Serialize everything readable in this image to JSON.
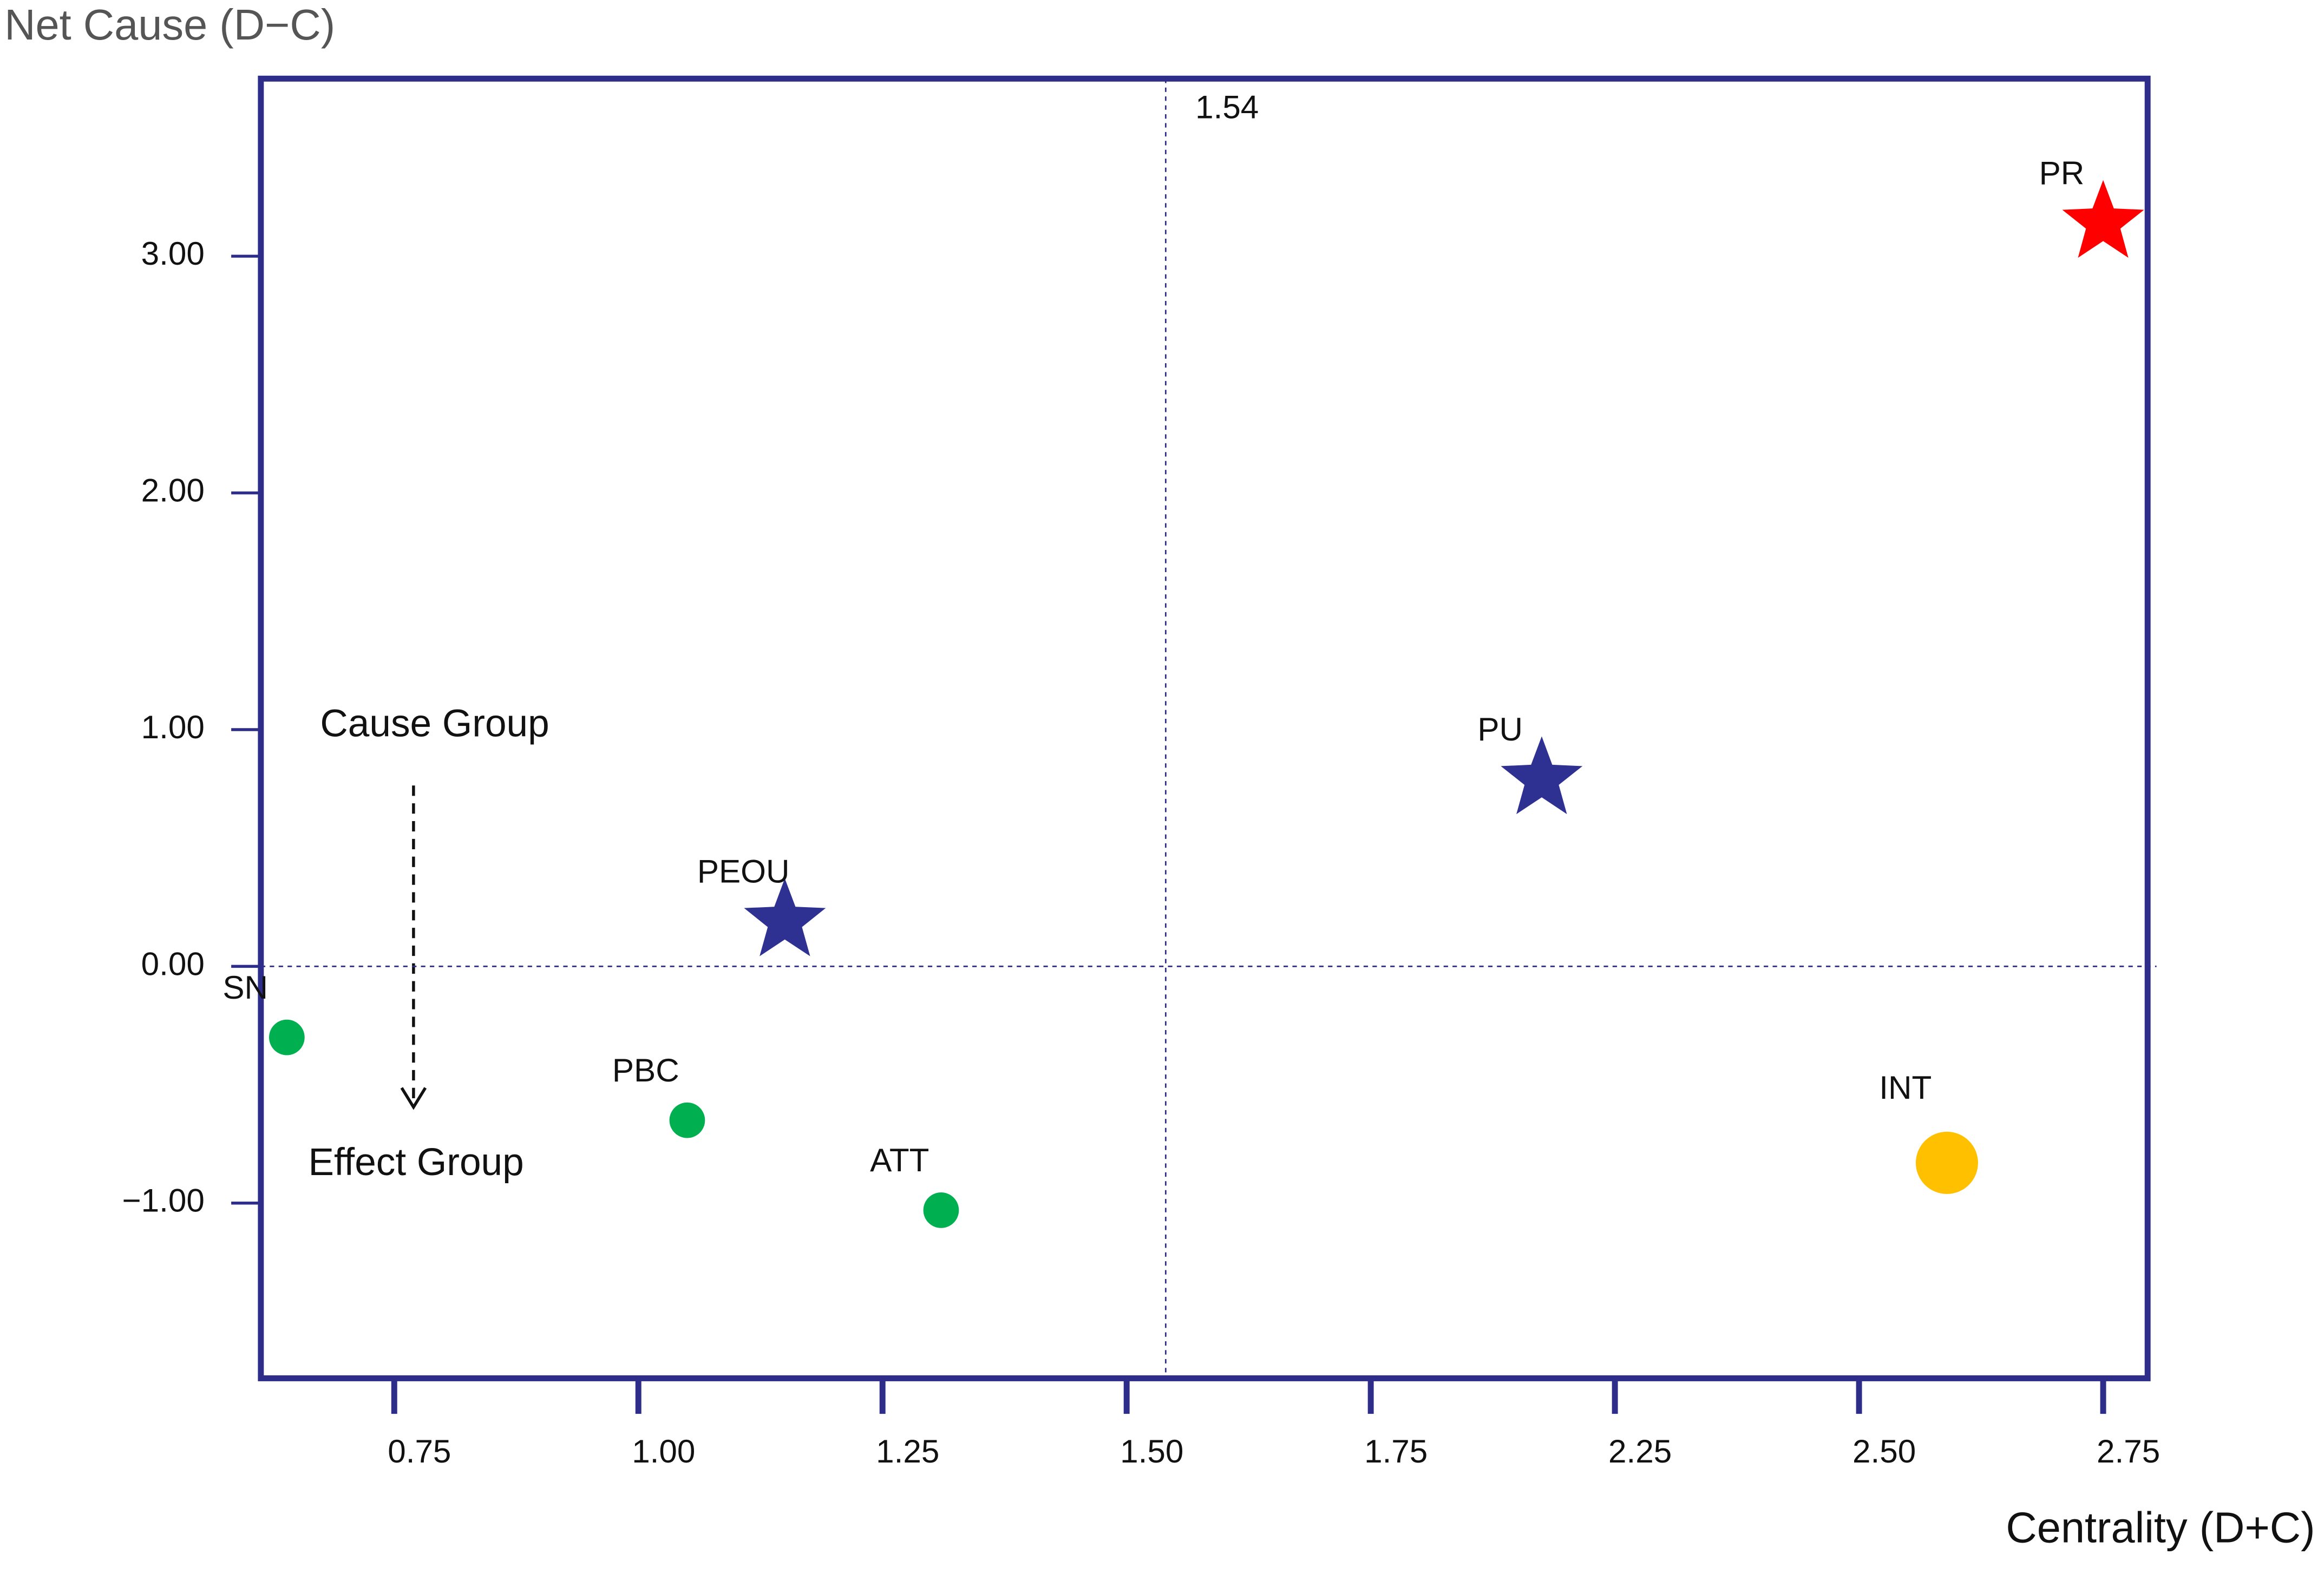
{
  "chart_data": {
    "type": "scatter",
    "x_label": "Centrality (D+C)",
    "y_label": "Net Cause (D−C)",
    "labels": [
      "PR",
      "PU",
      "PEOU",
      "SN",
      "PBC",
      "ATT",
      "INT"
    ],
    "x": [
      2.75,
      2.1,
      1.15,
      0.64,
      1.05,
      1.31,
      2.59
    ],
    "y": [
      3.14,
      0.79,
      0.19,
      -0.3,
      -0.65,
      -1.03,
      -0.83
    ],
    "colors": [
      "#ff0000",
      "#2e3192",
      "#2e3192",
      "#00b050",
      "#00b050",
      "#00b050",
      "#ffc000"
    ],
    "markers": [
      "star",
      "star",
      "star",
      "dot",
      "dot",
      "dot",
      "disc"
    ],
    "xlim": [
      0.61,
      2.79
    ],
    "ylim": [
      -1.74,
      3.75
    ],
    "xticks": [
      0.75,
      {
        "value": 1.0,
        "label": "1.00"
      },
      1.25,
      {
        "value": 1.5,
        "label": "1.50"
      },
      1.75,
      2.25,
      {
        "value": 2.5,
        "label": "2.50"
      },
      2.75
    ],
    "yticks": [
      {
        "value": 3,
        "label": "3.00"
      },
      {
        "value": 2,
        "label": "2.00"
      },
      {
        "value": 1,
        "label": "1.00"
      },
      {
        "value": 0,
        "label": "0.00"
      },
      {
        "value": -1,
        "label": "−1.00"
      }
    ],
    "vline": {
      "value": 1.54,
      "label": "1.54"
    },
    "hline": 0,
    "annotations": {
      "cause": "Cause Group",
      "effect": "Effect Group"
    },
    "frame_color": "#2e2e8a"
  }
}
